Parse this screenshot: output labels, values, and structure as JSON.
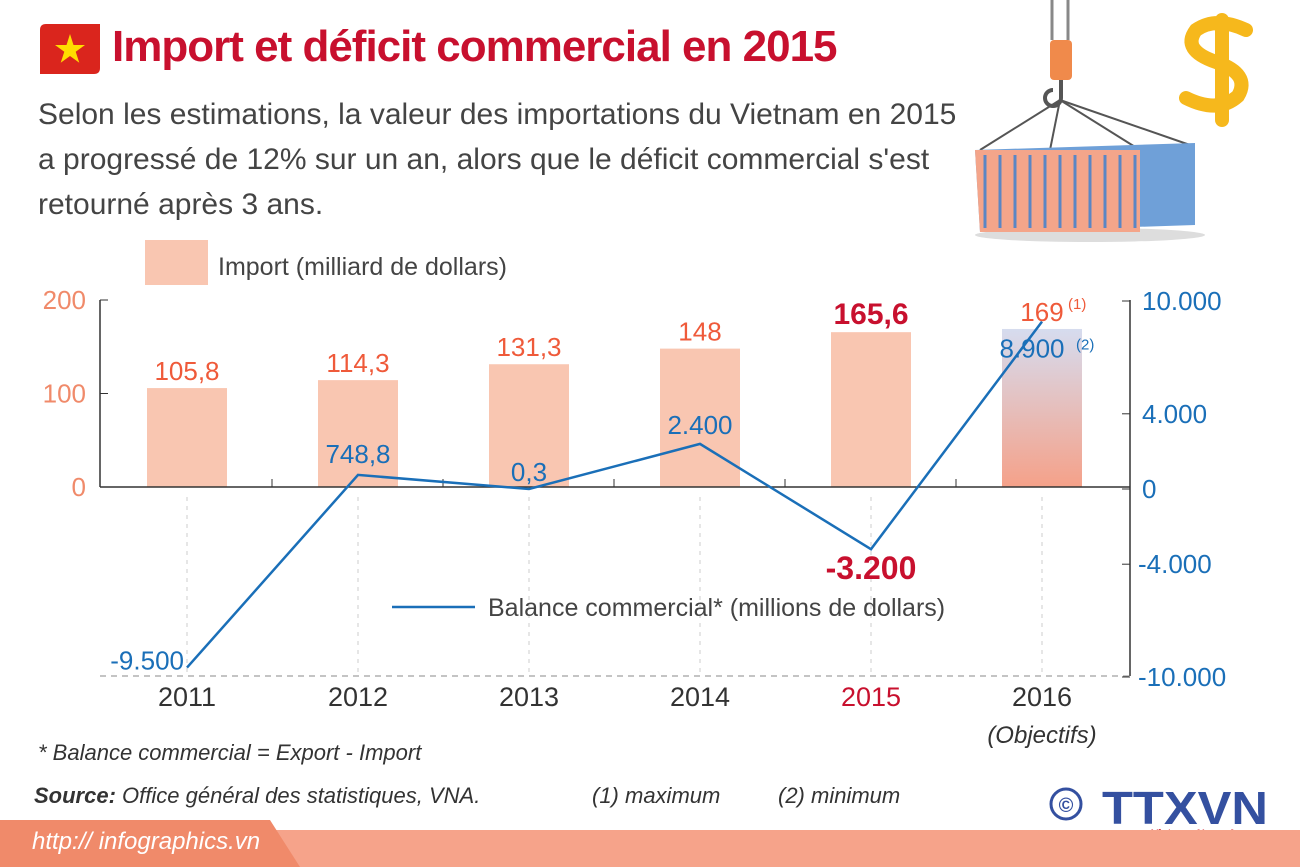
{
  "header": {
    "title": "Import et déficit commercial en 2015",
    "subtitle": "Selon les estimations, la valeur des importations du Vietnam en 2015 a progressé de 12% sur un an, alors que le déficit commercial s'est retourné après 3 ans.",
    "flag_icon": "vietnam-flag-icon"
  },
  "chart_data": {
    "type": "bar+line",
    "categories": [
      "2011",
      "2012",
      "2013",
      "2014",
      "2015",
      "2016"
    ],
    "category_sublabels": [
      "",
      "",
      "",
      "",
      "",
      "(Objectifs)"
    ],
    "highlight_category": "2015",
    "series": [
      {
        "name": "Import (milliard de dollars)",
        "type": "bar",
        "axis": "left",
        "values": [
          105.8,
          114.3,
          131.3,
          148,
          165.6,
          169
        ],
        "labels": [
          "105,8",
          "114,3",
          "131,3",
          "148",
          "165,6",
          "169"
        ],
        "label_notes": [
          "",
          "",
          "",
          "",
          "",
          "(1)"
        ],
        "color": "#f9c6b1"
      },
      {
        "name": "Balance commercial* (millions de dollars)",
        "type": "line",
        "axis": "right",
        "values": [
          -9500,
          748.8,
          0.3,
          2400,
          -3200,
          8900
        ],
        "labels": [
          "-9.500",
          "748,8",
          "0,3",
          "2.400",
          "-3.200",
          "8.900"
        ],
        "label_notes": [
          "",
          "",
          "",
          "",
          "",
          "(2)"
        ],
        "color": "#1a6fb8"
      }
    ],
    "left_axis": {
      "ylim": [
        0,
        200
      ],
      "ticks": [
        "0",
        "100",
        "200"
      ],
      "color": "#f08a6a"
    },
    "right_axis": {
      "ylim": [
        -10000,
        10000
      ],
      "ticks": [
        "10.000",
        "4.000",
        "0",
        "-4.000",
        "-10.000"
      ],
      "tick_values": [
        10000,
        4000,
        0,
        -4000,
        -10000
      ],
      "color": "#1a6fb8"
    },
    "legend_placement": "top-left for bars, bottom-center for line",
    "grid": false
  },
  "footer": {
    "footnote": "* Balance commercial = Export - Import",
    "source_label": "Source:",
    "source_text": " Office général des statistiques, VNA.",
    "note1": "(1) maximum",
    "note2": "(2) minimum",
    "url": "http:// infographics.vn",
    "logo_text": "TTXVN",
    "logo_subtext": "Vietnam News Agency",
    "copyright": "©"
  },
  "colors": {
    "title": "#c8102e",
    "accent_bar": "#f5a189",
    "line": "#1a6fb8",
    "logo_blue": "#3450a0"
  }
}
